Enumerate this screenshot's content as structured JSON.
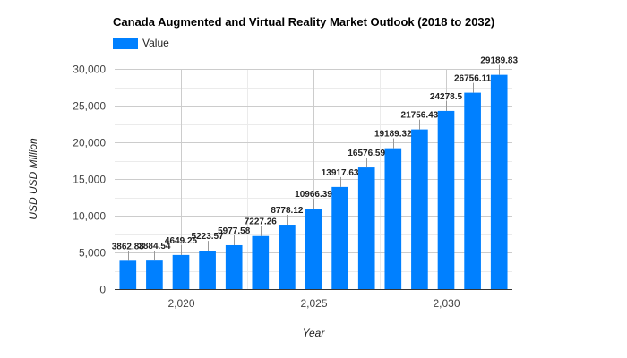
{
  "chart_data": {
    "type": "bar",
    "title": "Canada Augmented and Virtual Reality Market Outlook (2018 to 2032)",
    "xlabel": "Year",
    "ylabel": "USD USD Million",
    "legend": {
      "label": "Value",
      "position": "top-left"
    },
    "color": "#0080ff",
    "grid": true,
    "x": [
      2018,
      2019,
      2020,
      2021,
      2022,
      2023,
      2024,
      2025,
      2026,
      2027,
      2028,
      2029,
      2030,
      2031,
      2032
    ],
    "values": [
      3862.88,
      3884.54,
      4649.25,
      5223.57,
      5977.58,
      7227.26,
      8778.12,
      10966.39,
      13917.63,
      16576.59,
      19189.32,
      21756.43,
      24278.5,
      26756.11,
      29189.83
    ],
    "data_labels": [
      "3862.88",
      "3884.54",
      "4649.25",
      "5223.57",
      "5977.58",
      "7227.26",
      "8778.12",
      "10966.39",
      "13917.63",
      "16576.59",
      "19189.32",
      "21756.43",
      "24278.5",
      "26756.11",
      "29189.83"
    ],
    "x_ticks": [
      {
        "value": 2020,
        "label": "2,020"
      },
      {
        "value": 2025,
        "label": "2,025"
      },
      {
        "value": 2030,
        "label": "2,030"
      }
    ],
    "y_ticks": [
      {
        "value": 0,
        "label": "0"
      },
      {
        "value": 5000,
        "label": "5,000"
      },
      {
        "value": 10000,
        "label": "10,000"
      },
      {
        "value": 15000,
        "label": "15,000"
      },
      {
        "value": 20000,
        "label": "20,000"
      },
      {
        "value": 25000,
        "label": "25,000"
      },
      {
        "value": 30000,
        "label": "30,000"
      }
    ],
    "xlim": [
      2017.5,
      2032.5
    ],
    "ylim": [
      0,
      30000
    ]
  }
}
